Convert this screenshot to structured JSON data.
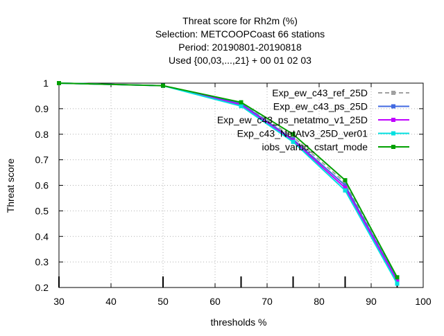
{
  "chart_data": {
    "type": "line",
    "title_lines": [
      "Threat score  for Rh2m (%)",
      "Selection: METCOOPCoast     66 stations",
      "Period: 20190801-20190818",
      "Used {00,03,...,21} + 00 01 02 03"
    ],
    "xlabel": "thresholds %",
    "ylabel": "Threat score",
    "xlim": [
      30,
      100
    ],
    "ylim": [
      0.2,
      1.0
    ],
    "x_ticks": [
      30,
      40,
      50,
      60,
      70,
      80,
      90,
      100
    ],
    "y_ticks": [
      0.2,
      0.3,
      0.4,
      0.5,
      0.6,
      0.7,
      0.8,
      0.9,
      1.0
    ],
    "y_tick_labels": [
      "0.2",
      "0.3",
      "0.4",
      "0.5",
      "0.6",
      "0.7",
      "0.8",
      "0.9",
      "1"
    ],
    "grid": true,
    "legend_position": "top-right",
    "bottom_markers_x": [
      30,
      50,
      65,
      75,
      85,
      95
    ],
    "series": [
      {
        "name": "Exp_ew_c43_ref_25D",
        "color": "#a0a0a0",
        "dashed": true,
        "x": [
          30,
          50,
          65,
          75,
          85,
          95
        ],
        "y": [
          1.0,
          0.99,
          0.92,
          0.79,
          0.61,
          0.23
        ]
      },
      {
        "name": "Exp_ew_c43_ps_25D",
        "color": "#4169e1",
        "dashed": false,
        "x": [
          30,
          50,
          65,
          75,
          85,
          95
        ],
        "y": [
          1.0,
          0.99,
          0.92,
          0.78,
          0.6,
          0.23
        ]
      },
      {
        "name": "Exp_ew_c43_ps_netatmo_v1_25D",
        "color": "#c000ff",
        "dashed": false,
        "x": [
          30,
          50,
          65,
          75,
          85,
          95
        ],
        "y": [
          1.0,
          0.99,
          0.915,
          0.775,
          0.59,
          0.225
        ]
      },
      {
        "name": "Exp_c43_NetAtv3_25D_ver01",
        "color": "#00e0e0",
        "dashed": false,
        "x": [
          30,
          50,
          65,
          75,
          85,
          95
        ],
        "y": [
          1.0,
          0.99,
          0.91,
          0.77,
          0.58,
          0.215
        ]
      },
      {
        "name": "iobs_varbc_cstart_mode",
        "color": "#00a000",
        "dashed": false,
        "x": [
          30,
          50,
          65,
          75,
          85,
          95
        ],
        "y": [
          1.0,
          0.99,
          0.925,
          0.8,
          0.62,
          0.24
        ]
      }
    ]
  }
}
